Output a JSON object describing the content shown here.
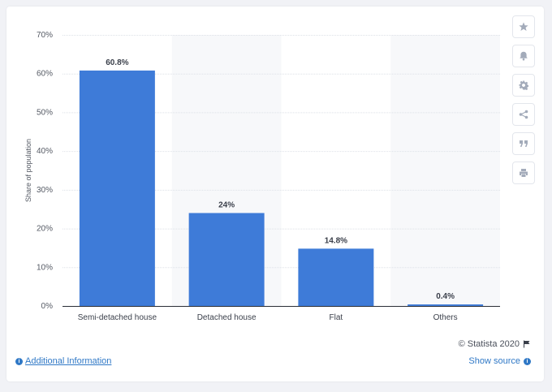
{
  "chart_data": {
    "type": "bar",
    "categories": [
      "Semi-detached house",
      "Detached house",
      "Flat",
      "Others"
    ],
    "values": [
      60.8,
      24,
      14.8,
      0.4
    ],
    "value_labels": [
      "60.8%",
      "24%",
      "14.8%",
      "0.4%"
    ],
    "ylabel": "Share of population",
    "yticks": [
      "0%",
      "10%",
      "20%",
      "30%",
      "40%",
      "50%",
      "60%",
      "70%"
    ],
    "ylim": [
      0,
      70
    ],
    "grid": true,
    "bar_color": "#3e7bd8"
  },
  "footer": {
    "credit": "© Statista 2020",
    "additional_info": "Additional Information",
    "show_source": "Show source"
  },
  "toolbar": {
    "icons": [
      "star-icon",
      "bell-icon",
      "gear-icon",
      "share-icon",
      "quote-icon",
      "print-icon"
    ]
  }
}
